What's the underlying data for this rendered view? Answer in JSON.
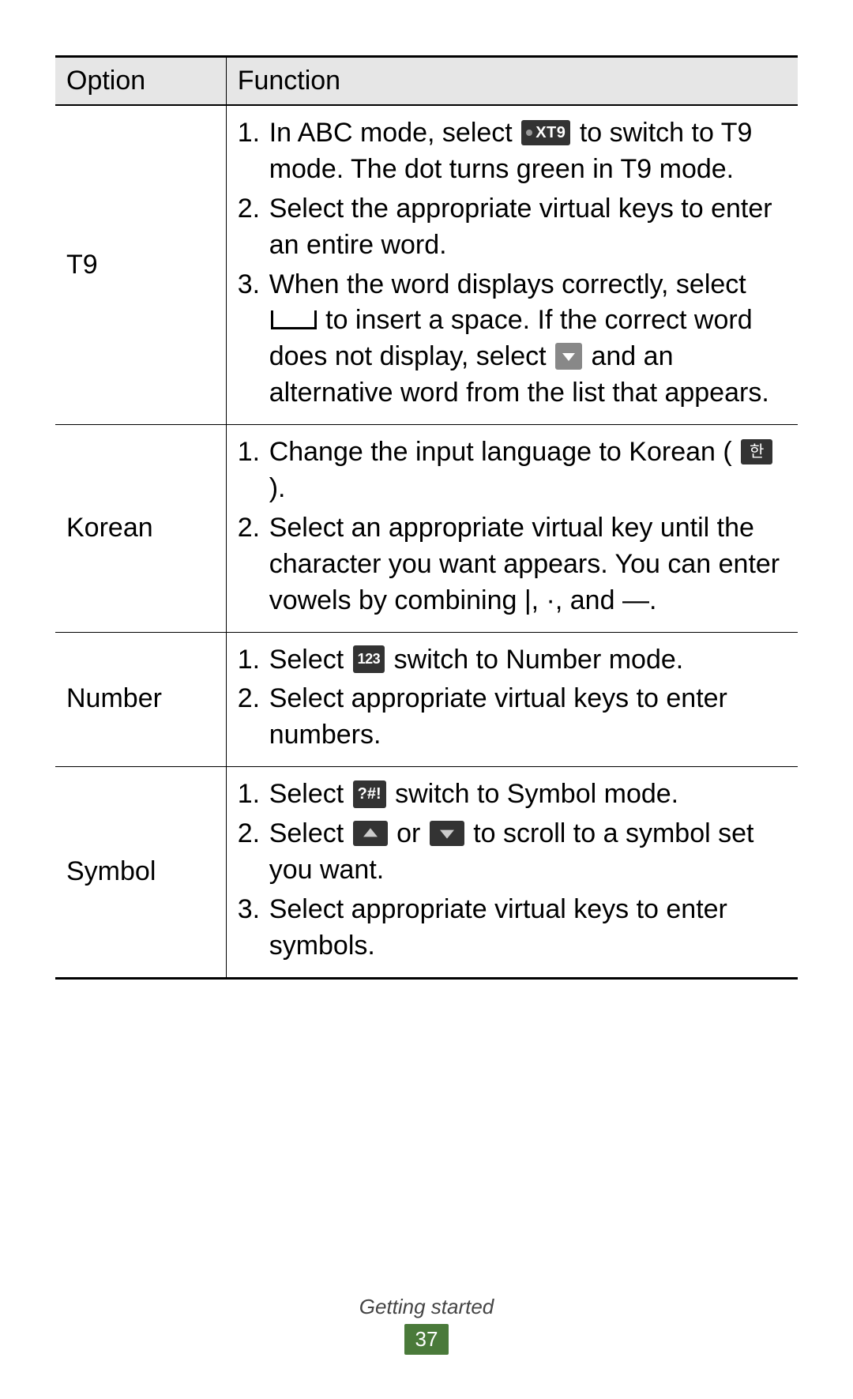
{
  "header": {
    "option": "Option",
    "function": "Function"
  },
  "t9": {
    "label": "T9",
    "s1a": "In ABC mode, select ",
    "s1b": " to switch to T9 mode. The dot turns green in T9 mode.",
    "s2": "Select the appropriate virtual keys to enter an entire word.",
    "s3a": "When the word displays correctly, select ",
    "s3b": " to insert a space. If the correct word does not display, select ",
    "s3c": " and an alternative word from the list that appears.",
    "xt9_text": "XT9"
  },
  "korean": {
    "label": "Korean",
    "s1a": "Change the input language to Korean ( ",
    "s1b": " ).",
    "s2": "Select an appropriate virtual key until the character you want appears. You can enter vowels by combining |, ·, and —.",
    "han_text": "한"
  },
  "number": {
    "label": "Number",
    "s1a": "Select ",
    "s1b": " switch to Number mode.",
    "s2": "Select appropriate virtual keys to enter numbers.",
    "icon_text": "123"
  },
  "symbol": {
    "label": "Symbol",
    "s1a": "Select ",
    "s1b": " switch to Symbol mode.",
    "s2a": "Select ",
    "s2b": " or ",
    "s2c": " to scroll to a symbol set you want.",
    "s3": "Select appropriate virtual keys to enter symbols.",
    "icon_text": "?#!"
  },
  "footer": {
    "section": "Getting started",
    "page": "37"
  }
}
